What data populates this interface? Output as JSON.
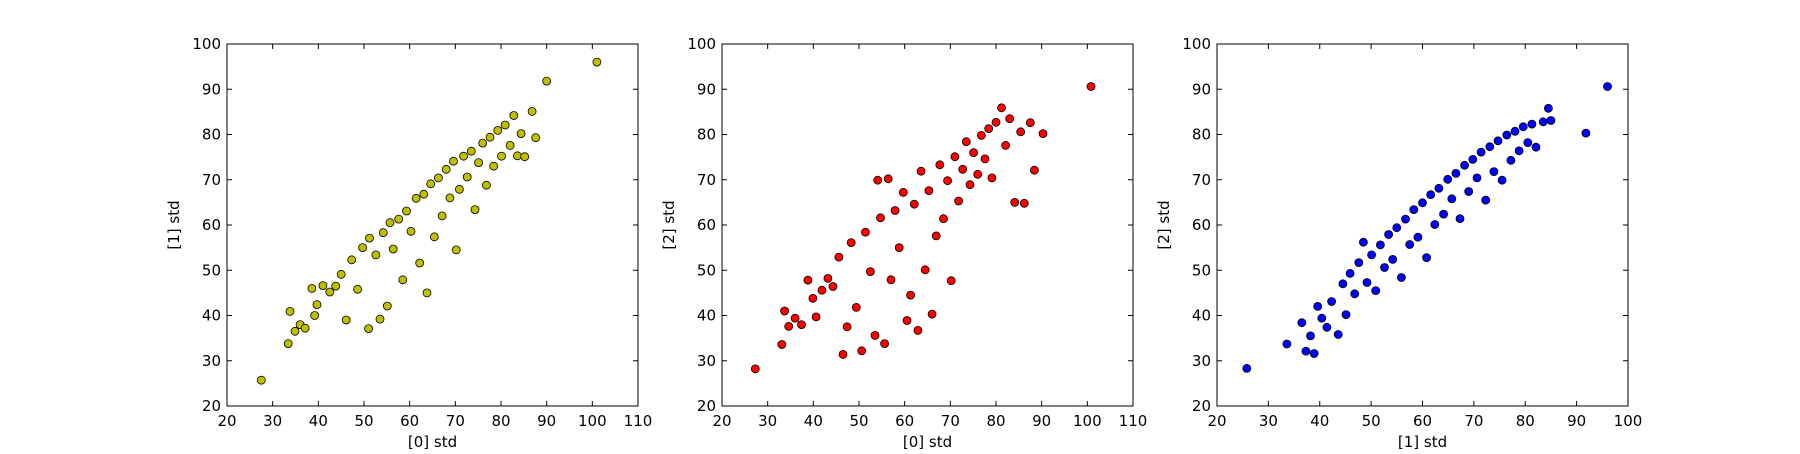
{
  "chart_data": [
    {
      "type": "scatter",
      "xlabel": "[0] std",
      "ylabel": "[1] std",
      "xlim": [
        20,
        110
      ],
      "ylim": [
        20,
        100
      ],
      "xticks": [
        20,
        30,
        40,
        50,
        60,
        70,
        80,
        90,
        100,
        110
      ],
      "yticks": [
        20,
        30,
        40,
        50,
        60,
        70,
        80,
        90,
        100
      ],
      "color": "#bfbf00",
      "grid": false,
      "points": [
        [
          27.5,
          25.7
        ],
        [
          33.4,
          33.8
        ],
        [
          33.8,
          40.9
        ],
        [
          34.9,
          36.5
        ],
        [
          36.0,
          38.0
        ],
        [
          37.1,
          37.2
        ],
        [
          38.6,
          46.0
        ],
        [
          39.2,
          40.0
        ],
        [
          39.7,
          42.4
        ],
        [
          41.0,
          46.6
        ],
        [
          42.5,
          45.2
        ],
        [
          43.8,
          46.5
        ],
        [
          45.0,
          49.1
        ],
        [
          46.1,
          39.0
        ],
        [
          47.3,
          52.3
        ],
        [
          48.6,
          45.8
        ],
        [
          49.7,
          55.0
        ],
        [
          51.0,
          37.1
        ],
        [
          51.2,
          57.1
        ],
        [
          52.6,
          53.4
        ],
        [
          53.5,
          39.2
        ],
        [
          54.2,
          58.3
        ],
        [
          55.1,
          42.1
        ],
        [
          55.7,
          60.5
        ],
        [
          56.4,
          54.7
        ],
        [
          57.6,
          61.3
        ],
        [
          58.5,
          47.9
        ],
        [
          59.3,
          63.1
        ],
        [
          60.3,
          58.6
        ],
        [
          61.4,
          65.9
        ],
        [
          62.2,
          51.6
        ],
        [
          63.1,
          66.8
        ],
        [
          63.8,
          45.0
        ],
        [
          64.6,
          69.1
        ],
        [
          65.4,
          57.4
        ],
        [
          66.3,
          70.4
        ],
        [
          67.1,
          62.0
        ],
        [
          68.0,
          72.3
        ],
        [
          68.8,
          66.0
        ],
        [
          69.6,
          74.1
        ],
        [
          70.2,
          54.5
        ],
        [
          70.9,
          67.9
        ],
        [
          71.8,
          75.2
        ],
        [
          72.6,
          70.6
        ],
        [
          73.5,
          76.3
        ],
        [
          74.3,
          63.4
        ],
        [
          75.1,
          73.8
        ],
        [
          76.0,
          78.1
        ],
        [
          76.8,
          68.8
        ],
        [
          77.6,
          79.4
        ],
        [
          78.4,
          73.0
        ],
        [
          79.3,
          80.9
        ],
        [
          80.1,
          75.2
        ],
        [
          80.9,
          82.1
        ],
        [
          82.0,
          77.6
        ],
        [
          82.8,
          84.2
        ],
        [
          83.6,
          75.3
        ],
        [
          84.4,
          80.2
        ],
        [
          85.2,
          75.1
        ],
        [
          86.8,
          85.1
        ],
        [
          87.6,
          79.3
        ],
        [
          90.0,
          91.8
        ],
        [
          101.0,
          96.0
        ]
      ]
    },
    {
      "type": "scatter",
      "xlabel": "[0] std",
      "ylabel": "[2] std",
      "xlim": [
        20,
        110
      ],
      "ylim": [
        20,
        100
      ],
      "xticks": [
        20,
        30,
        40,
        50,
        60,
        70,
        80,
        90,
        100,
        110
      ],
      "yticks": [
        20,
        30,
        40,
        50,
        60,
        70,
        80,
        90,
        100
      ],
      "color": "#ff0000",
      "grid": false,
      "points": [
        [
          27.3,
          28.2
        ],
        [
          33.1,
          33.6
        ],
        [
          33.7,
          41.0
        ],
        [
          34.6,
          37.6
        ],
        [
          36.0,
          39.4
        ],
        [
          37.4,
          38.0
        ],
        [
          38.8,
          47.8
        ],
        [
          39.9,
          43.8
        ],
        [
          40.6,
          39.7
        ],
        [
          41.9,
          45.6
        ],
        [
          43.2,
          48.2
        ],
        [
          44.3,
          46.4
        ],
        [
          45.6,
          52.9
        ],
        [
          46.5,
          31.4
        ],
        [
          47.4,
          37.5
        ],
        [
          48.3,
          56.1
        ],
        [
          49.4,
          41.8
        ],
        [
          50.6,
          32.2
        ],
        [
          51.4,
          58.4
        ],
        [
          52.5,
          49.7
        ],
        [
          53.5,
          35.6
        ],
        [
          54.1,
          69.9
        ],
        [
          54.7,
          61.6
        ],
        [
          55.6,
          33.8
        ],
        [
          56.4,
          70.2
        ],
        [
          57.0,
          47.9
        ],
        [
          57.9,
          63.2
        ],
        [
          58.8,
          55.0
        ],
        [
          59.7,
          67.2
        ],
        [
          60.5,
          38.9
        ],
        [
          61.3,
          44.5
        ],
        [
          62.1,
          64.6
        ],
        [
          62.9,
          36.7
        ],
        [
          63.6,
          71.9
        ],
        [
          64.5,
          50.1
        ],
        [
          65.3,
          67.6
        ],
        [
          66.0,
          40.3
        ],
        [
          66.9,
          57.6
        ],
        [
          67.7,
          73.3
        ],
        [
          68.5,
          61.4
        ],
        [
          69.4,
          69.8
        ],
        [
          70.2,
          47.7
        ],
        [
          71.0,
          75.1
        ],
        [
          71.8,
          65.3
        ],
        [
          72.7,
          72.3
        ],
        [
          73.5,
          78.4
        ],
        [
          74.3,
          68.9
        ],
        [
          75.1,
          76.0
        ],
        [
          76.0,
          71.2
        ],
        [
          76.8,
          79.8
        ],
        [
          77.6,
          74.6
        ],
        [
          78.4,
          81.3
        ],
        [
          79.1,
          70.4
        ],
        [
          80.0,
          82.7
        ],
        [
          81.2,
          85.9
        ],
        [
          82.1,
          77.6
        ],
        [
          83.0,
          83.5
        ],
        [
          84.1,
          65.0
        ],
        [
          85.4,
          80.6
        ],
        [
          86.2,
          64.8
        ],
        [
          87.5,
          82.6
        ],
        [
          88.4,
          72.1
        ],
        [
          90.3,
          80.2
        ],
        [
          100.8,
          90.6
        ]
      ]
    },
    {
      "type": "scatter",
      "xlabel": "[1] std",
      "ylabel": "[2] std",
      "xlim": [
        20,
        100
      ],
      "ylim": [
        20,
        100
      ],
      "xticks": [
        20,
        30,
        40,
        50,
        60,
        70,
        80,
        90,
        100
      ],
      "yticks": [
        20,
        30,
        40,
        50,
        60,
        70,
        80,
        90,
        100
      ],
      "color": "#0000ff",
      "grid": false,
      "points": [
        [
          25.8,
          28.3
        ],
        [
          33.6,
          33.7
        ],
        [
          36.5,
          38.4
        ],
        [
          37.3,
          32.1
        ],
        [
          38.2,
          35.5
        ],
        [
          38.9,
          31.6
        ],
        [
          39.6,
          42.0
        ],
        [
          40.4,
          39.4
        ],
        [
          41.4,
          37.4
        ],
        [
          42.3,
          43.1
        ],
        [
          43.6,
          35.8
        ],
        [
          44.5,
          47.0
        ],
        [
          45.1,
          40.2
        ],
        [
          45.9,
          49.3
        ],
        [
          46.8,
          44.8
        ],
        [
          47.6,
          51.7
        ],
        [
          48.5,
          56.2
        ],
        [
          49.2,
          47.3
        ],
        [
          50.1,
          53.4
        ],
        [
          50.9,
          45.5
        ],
        [
          51.8,
          55.6
        ],
        [
          52.6,
          50.6
        ],
        [
          53.4,
          57.9
        ],
        [
          54.2,
          52.4
        ],
        [
          55.0,
          59.4
        ],
        [
          55.9,
          48.4
        ],
        [
          56.7,
          61.3
        ],
        [
          57.5,
          55.7
        ],
        [
          58.3,
          63.4
        ],
        [
          59.1,
          57.3
        ],
        [
          60.0,
          64.9
        ],
        [
          60.8,
          52.8
        ],
        [
          61.6,
          66.7
        ],
        [
          62.4,
          60.1
        ],
        [
          63.2,
          68.1
        ],
        [
          64.1,
          62.4
        ],
        [
          64.9,
          70.1
        ],
        [
          65.7,
          65.8
        ],
        [
          66.5,
          71.4
        ],
        [
          67.3,
          61.4
        ],
        [
          68.2,
          73.2
        ],
        [
          69.0,
          67.4
        ],
        [
          69.8,
          74.5
        ],
        [
          70.6,
          70.4
        ],
        [
          71.4,
          76.1
        ],
        [
          72.3,
          65.5
        ],
        [
          73.1,
          77.3
        ],
        [
          73.9,
          71.8
        ],
        [
          74.7,
          78.6
        ],
        [
          75.5,
          69.9
        ],
        [
          76.4,
          79.9
        ],
        [
          77.2,
          74.3
        ],
        [
          78.0,
          80.7
        ],
        [
          78.8,
          76.4
        ],
        [
          79.6,
          81.7
        ],
        [
          80.5,
          78.2
        ],
        [
          81.3,
          82.3
        ],
        [
          82.1,
          77.2
        ],
        [
          83.5,
          82.8
        ],
        [
          84.5,
          85.8
        ],
        [
          85.0,
          83.1
        ],
        [
          91.8,
          80.3
        ],
        [
          96.0,
          90.6
        ]
      ]
    }
  ]
}
